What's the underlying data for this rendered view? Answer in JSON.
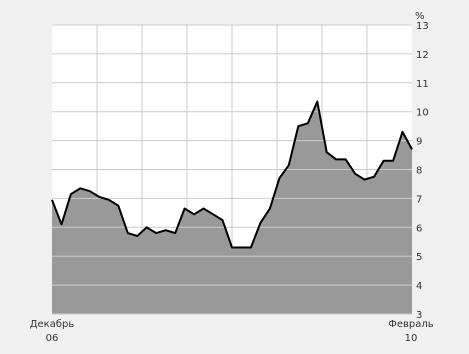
{
  "chart_data": {
    "type": "area",
    "unit": "%",
    "x_labels": [
      {
        "line1": "Декабрь",
        "line2": "06"
      },
      {
        "line1": "Февраль",
        "line2": "10"
      }
    ],
    "ylim": [
      3,
      13
    ],
    "yticks": [
      3,
      4,
      5,
      6,
      7,
      8,
      9,
      10,
      11,
      12,
      13
    ],
    "grid": true,
    "colors": {
      "fill": "#999999",
      "line": "#000000",
      "grid": "#cccccc",
      "plot_bg": "#ffffff",
      "page_bg": "#f0f0f0"
    },
    "series": [
      {
        "values": [
          6.95,
          6.1,
          7.15,
          7.35,
          7.25,
          7.05,
          6.95,
          6.75,
          5.8,
          5.7,
          6.0,
          5.8,
          5.9,
          5.8,
          6.65,
          6.45,
          6.65,
          6.45,
          6.25,
          5.3,
          5.3,
          5.3,
          6.15,
          6.65,
          7.7,
          8.15,
          9.5,
          9.6,
          10.35,
          8.6,
          8.35,
          8.35,
          7.85,
          7.65,
          7.75,
          8.3,
          8.3,
          9.3,
          8.7
        ]
      }
    ]
  }
}
